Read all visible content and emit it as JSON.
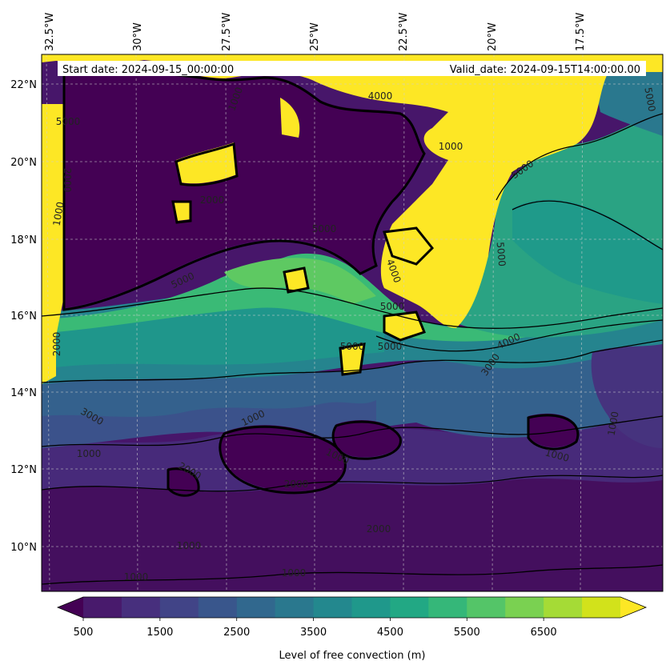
{
  "header": {
    "start_date": "Start date: 2024-09-15_00:00:00",
    "valid_date": "Valid_date: 2024-09-15T14:00:00.00"
  },
  "map": {
    "lon_labels": [
      "32.5°W",
      "30°W",
      "27.5°W",
      "25°W",
      "22.5°W",
      "20°W",
      "17.5°W"
    ],
    "lat_labels": [
      "22°N",
      "20°N",
      "18°N",
      "16°N",
      "14°N",
      "12°N",
      "10°N"
    ],
    "contour_labels": [
      "4000",
      "5000",
      "5000",
      "2000",
      "1000",
      "2000",
      "5000",
      "5000",
      "5000",
      "2000",
      "4000",
      "5000",
      "3000",
      "5000",
      "5000",
      "4000",
      "5000",
      "3000",
      "2000",
      "1000",
      "1000",
      "1000",
      "2000",
      "2000",
      "1000",
      "1000",
      "1000",
      "1000",
      "1000",
      "1000",
      "1000"
    ]
  },
  "colorbar": {
    "label": "Level of free convection (m)",
    "tick_labels": [
      "500",
      "1500",
      "2500",
      "3500",
      "4500",
      "5500",
      "6500"
    ],
    "colors": [
      "#440154",
      "#481a6c",
      "#472f7d",
      "#414487",
      "#39568c",
      "#31688e",
      "#2a788e",
      "#23888e",
      "#1f988b",
      "#22a884",
      "#35b779",
      "#54c568",
      "#7ad151",
      "#a5db36",
      "#d2e21b",
      "#fde725"
    ]
  }
}
